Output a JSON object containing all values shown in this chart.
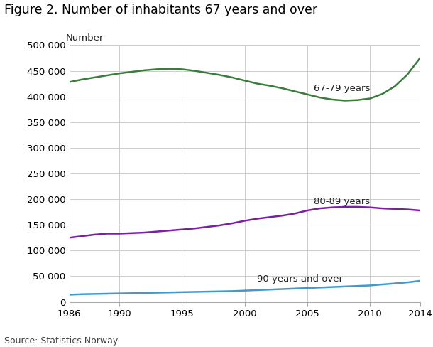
{
  "title": "Figure 2. Number of inhabitants 67 years and over",
  "ylabel": "Number",
  "source": "Source: Statistics Norway.",
  "xlim": [
    1986,
    2014
  ],
  "ylim": [
    0,
    500000
  ],
  "yticks": [
    0,
    50000,
    100000,
    150000,
    200000,
    250000,
    300000,
    350000,
    400000,
    450000,
    500000
  ],
  "ytick_labels": [
    "0",
    "50 000",
    "100 000",
    "150 000",
    "200 000",
    "250 000",
    "300 000",
    "350 000",
    "400 000",
    "450 000",
    "500 000"
  ],
  "xticks": [
    1986,
    1990,
    1995,
    2000,
    2005,
    2010,
    2014
  ],
  "series": [
    {
      "label": "67-79 years",
      "color": "#3a7d3a",
      "annotation": "67-79 years",
      "ann_x": 2005.5,
      "ann_y": 415000,
      "x": [
        1986,
        1987,
        1988,
        1989,
        1990,
        1991,
        1992,
        1993,
        1994,
        1995,
        1996,
        1997,
        1998,
        1999,
        2000,
        2001,
        2002,
        2003,
        2004,
        2005,
        2006,
        2007,
        2008,
        2009,
        2010,
        2011,
        2012,
        2013,
        2014
      ],
      "y": [
        428000,
        433000,
        437000,
        441000,
        445000,
        448000,
        451000,
        453000,
        454000,
        453000,
        450000,
        446000,
        442000,
        437000,
        431000,
        425000,
        421000,
        416000,
        410000,
        404000,
        398000,
        394000,
        392000,
        393000,
        396000,
        405000,
        420000,
        443000,
        475000
      ]
    },
    {
      "label": "80-89 years",
      "color": "#7b1fa2",
      "annotation": "80-89 years",
      "ann_x": 2005.5,
      "ann_y": 196000,
      "x": [
        1986,
        1987,
        1988,
        1989,
        1990,
        1991,
        1992,
        1993,
        1994,
        1995,
        1996,
        1997,
        1998,
        1999,
        2000,
        2001,
        2002,
        2003,
        2004,
        2005,
        2006,
        2007,
        2008,
        2009,
        2010,
        2011,
        2012,
        2013,
        2014
      ],
      "y": [
        125000,
        128000,
        131000,
        133000,
        133000,
        134000,
        135000,
        137000,
        139000,
        141000,
        143000,
        146000,
        149000,
        153000,
        158000,
        162000,
        165000,
        168000,
        172000,
        178000,
        182000,
        184000,
        185000,
        185000,
        184000,
        182000,
        181000,
        180000,
        178000
      ]
    },
    {
      "label": "90 years and over",
      "color": "#4499cc",
      "annotation": "90 years and over",
      "ann_x": 2001.0,
      "ann_y": 45000,
      "x": [
        1986,
        1987,
        1988,
        1989,
        1990,
        1991,
        1992,
        1993,
        1994,
        1995,
        1996,
        1997,
        1998,
        1999,
        2000,
        2001,
        2002,
        2003,
        2004,
        2005,
        2006,
        2007,
        2008,
        2009,
        2010,
        2011,
        2012,
        2013,
        2014
      ],
      "y": [
        14000,
        15000,
        15500,
        16000,
        16500,
        17000,
        17500,
        18000,
        18500,
        19000,
        19500,
        20000,
        20500,
        21000,
        22000,
        23000,
        24000,
        25000,
        26000,
        27000,
        28000,
        29000,
        30000,
        31000,
        32000,
        34000,
        36000,
        38000,
        41000
      ]
    }
  ],
  "plot_bg_color": "#ffffff",
  "fig_bg_color": "#ffffff",
  "grid_color": "#cccccc",
  "title_fontsize": 12.5,
  "ann_fontsize": 9.5,
  "tick_fontsize": 9.5,
  "source_fontsize": 9
}
